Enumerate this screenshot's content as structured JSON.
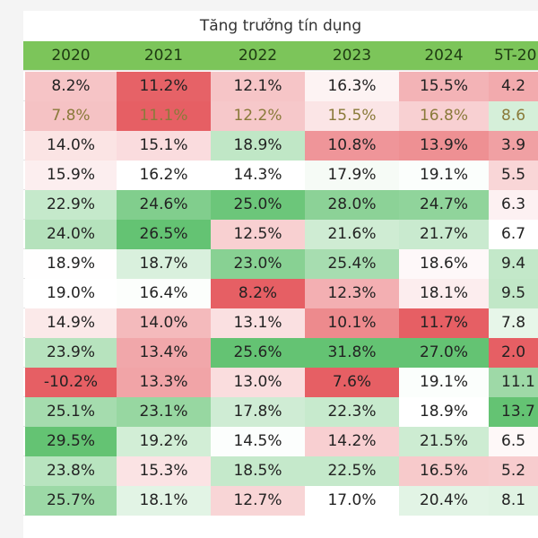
{
  "table": {
    "title": "Tăng trưởng tín dụng",
    "header": [
      "2020",
      "2021",
      "2022",
      "2023",
      "2024",
      "5T-20"
    ],
    "rows": [
      [
        "8.2%",
        "11.2%",
        "12.1%",
        "16.3%",
        "15.5%",
        "4.2"
      ],
      [
        "7.8%",
        "11.1%",
        "12.2%",
        "15.5%",
        "16.8%",
        "8.6"
      ],
      [
        "14.0%",
        "15.1%",
        "18.9%",
        "10.8%",
        "13.9%",
        "3.9"
      ],
      [
        "15.9%",
        "16.2%",
        "14.3%",
        "17.9%",
        "19.1%",
        "5.5"
      ],
      [
        "22.9%",
        "24.6%",
        "25.0%",
        "28.0%",
        "24.7%",
        "6.3"
      ],
      [
        "24.0%",
        "26.5%",
        "12.5%",
        "21.6%",
        "21.7%",
        "6.7"
      ],
      [
        "18.9%",
        "18.7%",
        "23.0%",
        "25.4%",
        "18.6%",
        "9.4"
      ],
      [
        "19.0%",
        "16.4%",
        "8.2%",
        "12.3%",
        "18.1%",
        "9.5"
      ],
      [
        "14.9%",
        "14.0%",
        "13.1%",
        "10.1%",
        "11.7%",
        "7.8"
      ],
      [
        "23.9%",
        "13.4%",
        "25.6%",
        "31.8%",
        "27.0%",
        "2.0"
      ],
      [
        "-10.2%",
        "13.3%",
        "13.0%",
        "7.6%",
        "19.1%",
        "11.1"
      ],
      [
        "25.1%",
        "23.1%",
        "17.8%",
        "22.3%",
        "18.9%",
        "13.7"
      ],
      [
        "29.5%",
        "19.2%",
        "14.5%",
        "14.2%",
        "21.5%",
        "6.5"
      ],
      [
        "23.8%",
        "15.3%",
        "18.5%",
        "22.5%",
        "16.5%",
        "5.2"
      ],
      [
        "25.7%",
        "18.1%",
        "12.7%",
        "17.0%",
        "20.4%",
        "8.1"
      ]
    ]
  }
}
